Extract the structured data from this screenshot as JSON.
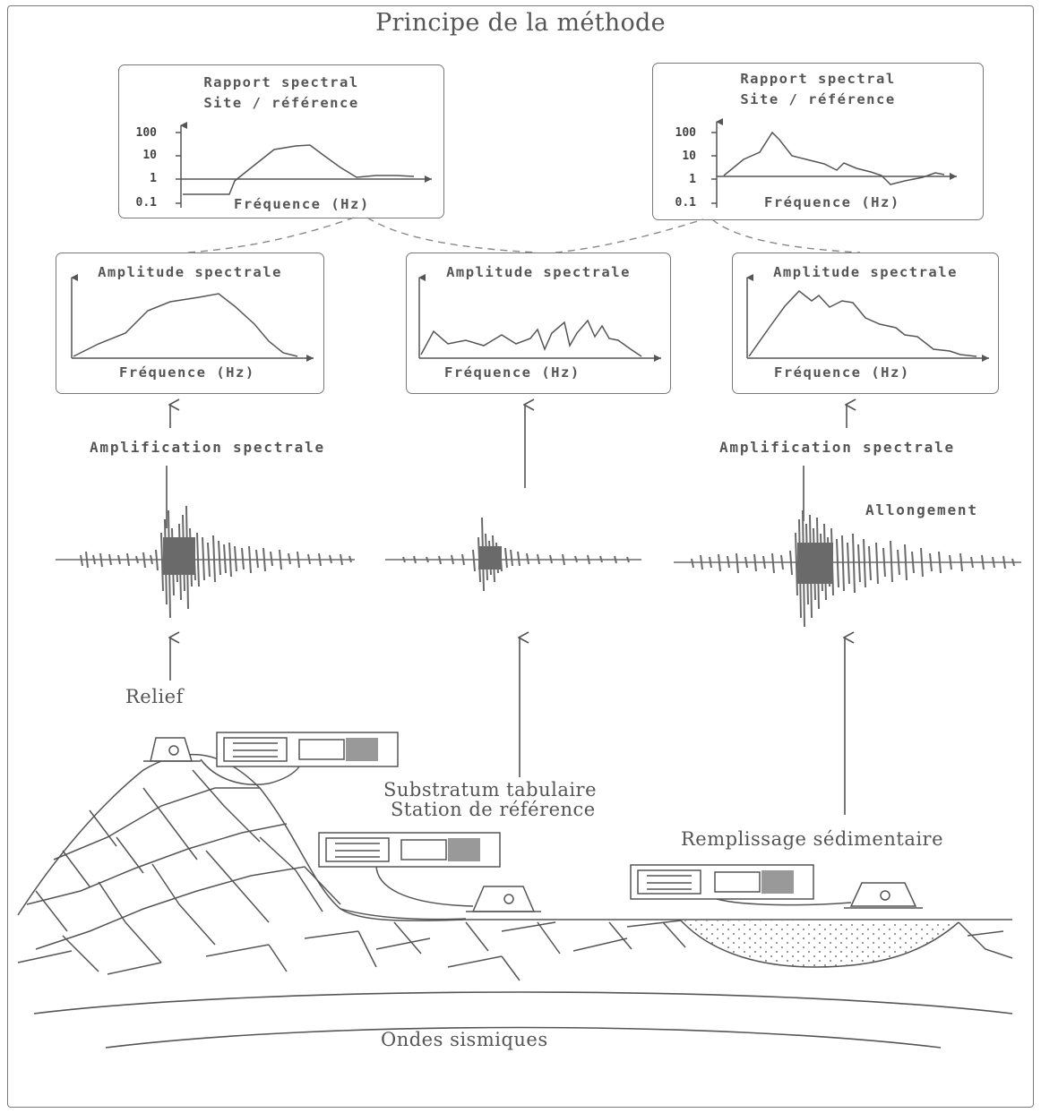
{
  "title": "Principe de la méthode",
  "ratio_box": {
    "title_line1": "Rapport spectral",
    "title_line2": "Site / référence",
    "xlabel": "Fréquence (Hz)",
    "ticks": [
      "100",
      "10",
      "1",
      "0.1"
    ]
  },
  "ratio_box_right": {
    "title_line1": "Rapport spectral",
    "title_line2": "Site / référence",
    "xlabel": "Fréquence (Hz)",
    "ticks": [
      "100",
      "10",
      "1",
      "0.1"
    ]
  },
  "amp_boxes": [
    {
      "title": "Amplitude spectrale",
      "xlabel": "Fréquence (Hz)"
    },
    {
      "title": "Amplitude spectrale",
      "xlabel": "Fréquence (Hz)"
    },
    {
      "title": "Amplitude spectrale",
      "xlabel": "Fréquence (Hz)"
    }
  ],
  "labels": {
    "amplification_left": "Amplification spectrale",
    "amplification_right": "Amplification spectrale",
    "allongement": "Allongement",
    "relief": "Relief",
    "substratum_line1": "Substratum tabulaire",
    "substratum_line2": "Station de référence",
    "remplissage": "Remplissage sédimentaire",
    "ondes": "Ondes sismiques"
  },
  "colors": {
    "line": "#555555",
    "signal": "#6a6a6a",
    "box_border": "#777777"
  },
  "icons": [
    "seismometer-icon",
    "recorder-icon"
  ]
}
